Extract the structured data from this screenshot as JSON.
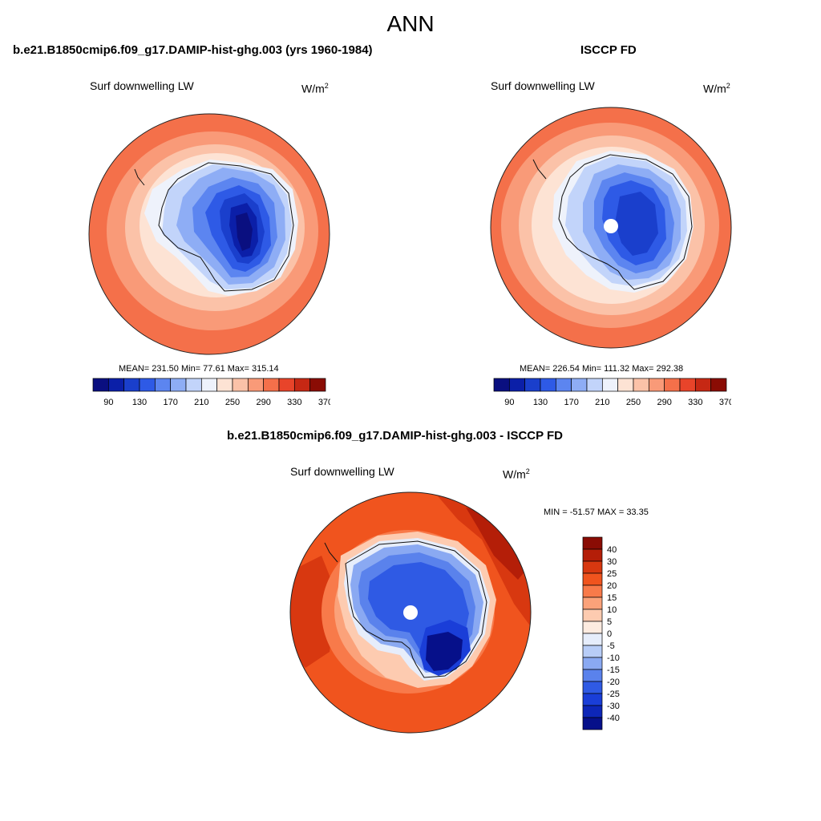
{
  "main_title": "ANN",
  "panels": [
    {
      "title": "b.e21.B1850cmip6.f09_g17.DAMIP-hist-ghg.003 (yrs 1960-1984)",
      "variable": "Surf downwelling LW",
      "units_base": "W/m",
      "units_exp": "2",
      "stats": "MEAN= 231.50  Min=  77.61  Max= 315.14",
      "colorbar": {
        "tick_labels": [
          "90",
          "130",
          "170",
          "210",
          "250",
          "290",
          "330",
          "370"
        ],
        "colors": [
          "#0a0f80",
          "#0b1fa8",
          "#1a3fcc",
          "#2e5ae6",
          "#5c85f0",
          "#8eadf5",
          "#c2d4fa",
          "#eef2fb",
          "#fde3d4",
          "#fbc2a8",
          "#f99a78",
          "#f4704a",
          "#e8442a",
          "#c62814",
          "#8a0c04"
        ]
      }
    },
    {
      "title": "ISCCP FD",
      "variable": "Surf downwelling LW",
      "units_base": "W/m",
      "units_exp": "2",
      "stats": "MEAN= 226.54  Min= 111.32  Max= 292.38",
      "colorbar": {
        "tick_labels": [
          "90",
          "130",
          "170",
          "210",
          "250",
          "290",
          "330",
          "370"
        ],
        "colors": [
          "#0a0f80",
          "#0b1fa8",
          "#1a3fcc",
          "#2e5ae6",
          "#5c85f0",
          "#8eadf5",
          "#c2d4fa",
          "#eef2fb",
          "#fde3d4",
          "#fbc2a8",
          "#f99a78",
          "#f4704a",
          "#e8442a",
          "#c62814",
          "#8a0c04"
        ]
      }
    },
    {
      "title": "b.e21.B1850cmip6.f09_g17.DAMIP-hist-ghg.003 - ISCCP FD",
      "variable": "Surf downwelling LW",
      "units_base": "W/m",
      "units_exp": "2",
      "stats": "MIN = -51.57 MAX =  33.35",
      "colorbar": {
        "tick_labels": [
          "40",
          "30",
          "25",
          "20",
          "15",
          "10",
          "5",
          "0",
          "-5",
          "-10",
          "-15",
          "-20",
          "-25",
          "-30",
          "-40"
        ],
        "colors": [
          "#8a0c04",
          "#b41e08",
          "#d83810",
          "#f0541e",
          "#f87a4a",
          "#fba27a",
          "#fdcbb0",
          "#fdebe0",
          "#e6edfb",
          "#b8cdf7",
          "#8aa9f2",
          "#5a82ec",
          "#2f5ae4",
          "#1a3ed8",
          "#0d26b8",
          "#06108a"
        ]
      }
    }
  ]
}
